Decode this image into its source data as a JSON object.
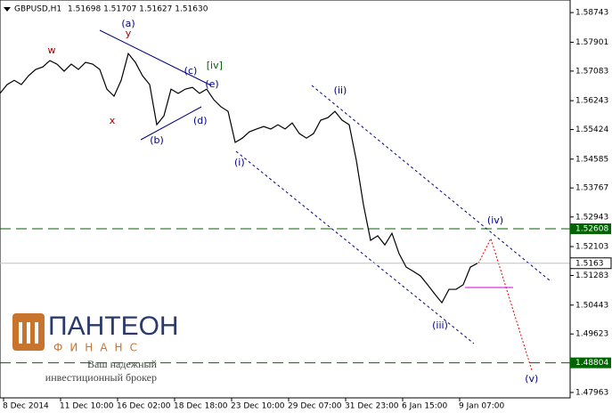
{
  "chart_data": {
    "type": "line",
    "title": "GBPUSD,H1",
    "subtitle": "1.51698 1.51707 1.51627 1.51630",
    "series": [
      {
        "name": "GBPUSD",
        "color": "#000000",
        "values": [
          1.5645,
          1.567,
          1.5682,
          1.567,
          1.5695,
          1.5713,
          1.572,
          1.5738,
          1.5728,
          1.5708,
          1.5728,
          1.5713,
          1.5733,
          1.5728,
          1.5713,
          1.5657,
          1.5637,
          1.5682,
          1.5758,
          1.5733,
          1.5695,
          1.567,
          1.5556,
          1.5581,
          1.5657,
          1.5645,
          1.5657,
          1.5662,
          1.5645,
          1.5657,
          1.5627,
          1.5607,
          1.5594,
          1.5506,
          1.5518,
          1.5536,
          1.5544,
          1.5551,
          1.5544,
          1.5556,
          1.5544,
          1.5561,
          1.5531,
          1.5518,
          1.5531,
          1.5569,
          1.5576,
          1.5594,
          1.5569,
          1.5556,
          1.5455,
          1.5329,
          1.5228,
          1.5241,
          1.5215,
          1.5248,
          1.519,
          1.5152,
          1.514,
          1.5127,
          1.5102,
          1.5076,
          1.5051,
          1.5089,
          1.5089,
          1.5102,
          1.5152,
          1.5163
        ]
      }
    ],
    "xlim": [
      0,
      80
    ],
    "xticks": [
      {
        "value": 0.5,
        "label": "8 Dec 2014"
      },
      {
        "value": 8.5,
        "label": "11 Dec 10:00"
      },
      {
        "value": 16.5,
        "label": "16 Dec 02:00"
      },
      {
        "value": 24.5,
        "label": "18 Dec 18:00"
      },
      {
        "value": 32.5,
        "label": "23 Dec 10:00"
      },
      {
        "value": 40.5,
        "label": "29 Dec 07:00"
      },
      {
        "value": 48.5,
        "label": "31 Dec 23:00"
      },
      {
        "value": 56.5,
        "label": "6 Jan 15:00"
      },
      {
        "value": 64.5,
        "label": "9 Jan 07:00"
      }
    ],
    "ylim": [
      1.4781,
      1.591
    ],
    "yticks": [
      1.58743,
      1.57901,
      1.57083,
      1.56243,
      1.55424,
      1.54585,
      1.53767,
      1.52943,
      1.52103,
      1.51283,
      1.50443,
      1.49623,
      1.47963
    ],
    "levels": [
      {
        "value": 1.52608,
        "color": "#006400"
      },
      {
        "value": 1.48804,
        "color": "#006400"
      }
    ],
    "current": 1.5163,
    "annotations": [
      {
        "text": "(a)",
        "x": 18,
        "y": 1.5842,
        "color": "#000080"
      },
      {
        "text": "y",
        "x": 18,
        "y": 1.5814,
        "color": "#a00000"
      },
      {
        "text": "w",
        "x": 7.25,
        "y": 1.5766,
        "color": "#a00000"
      },
      {
        "text": "x",
        "x": 15.75,
        "y": 1.5566,
        "color": "#a00000"
      },
      {
        "text": "(b)",
        "x": 22,
        "y": 1.5511,
        "color": "#000080"
      },
      {
        "text": "(c)",
        "x": 26.75,
        "y": 1.5708,
        "color": "#000080"
      },
      {
        "text": "[iv]",
        "x": 30.1,
        "y": 1.5723,
        "color": "#006400"
      },
      {
        "text": "(e)",
        "x": 29.75,
        "y": 1.567,
        "color": "#000080"
      },
      {
        "text": "(d)",
        "x": 28.1,
        "y": 1.5566,
        "color": "#000080"
      },
      {
        "text": "(i)",
        "x": 33.6,
        "y": 1.5448,
        "color": "#000080"
      },
      {
        "text": "(ii)",
        "x": 47.75,
        "y": 1.5652,
        "color": "#000080"
      },
      {
        "text": "(iii)",
        "x": 61.75,
        "y": 1.4986,
        "color": "#000080"
      },
      {
        "text": "(iv)",
        "x": 69.5,
        "y": 1.5283,
        "color": "#000080"
      },
      {
        "text": "(v)",
        "x": 74.6,
        "y": 1.4834,
        "color": "#000080"
      }
    ]
  },
  "logo": {
    "name": "ПАНТЕОН",
    "sub": "ФИНАНС",
    "line1": "Ваш надежный",
    "line2": "инвестиционный брокер"
  }
}
